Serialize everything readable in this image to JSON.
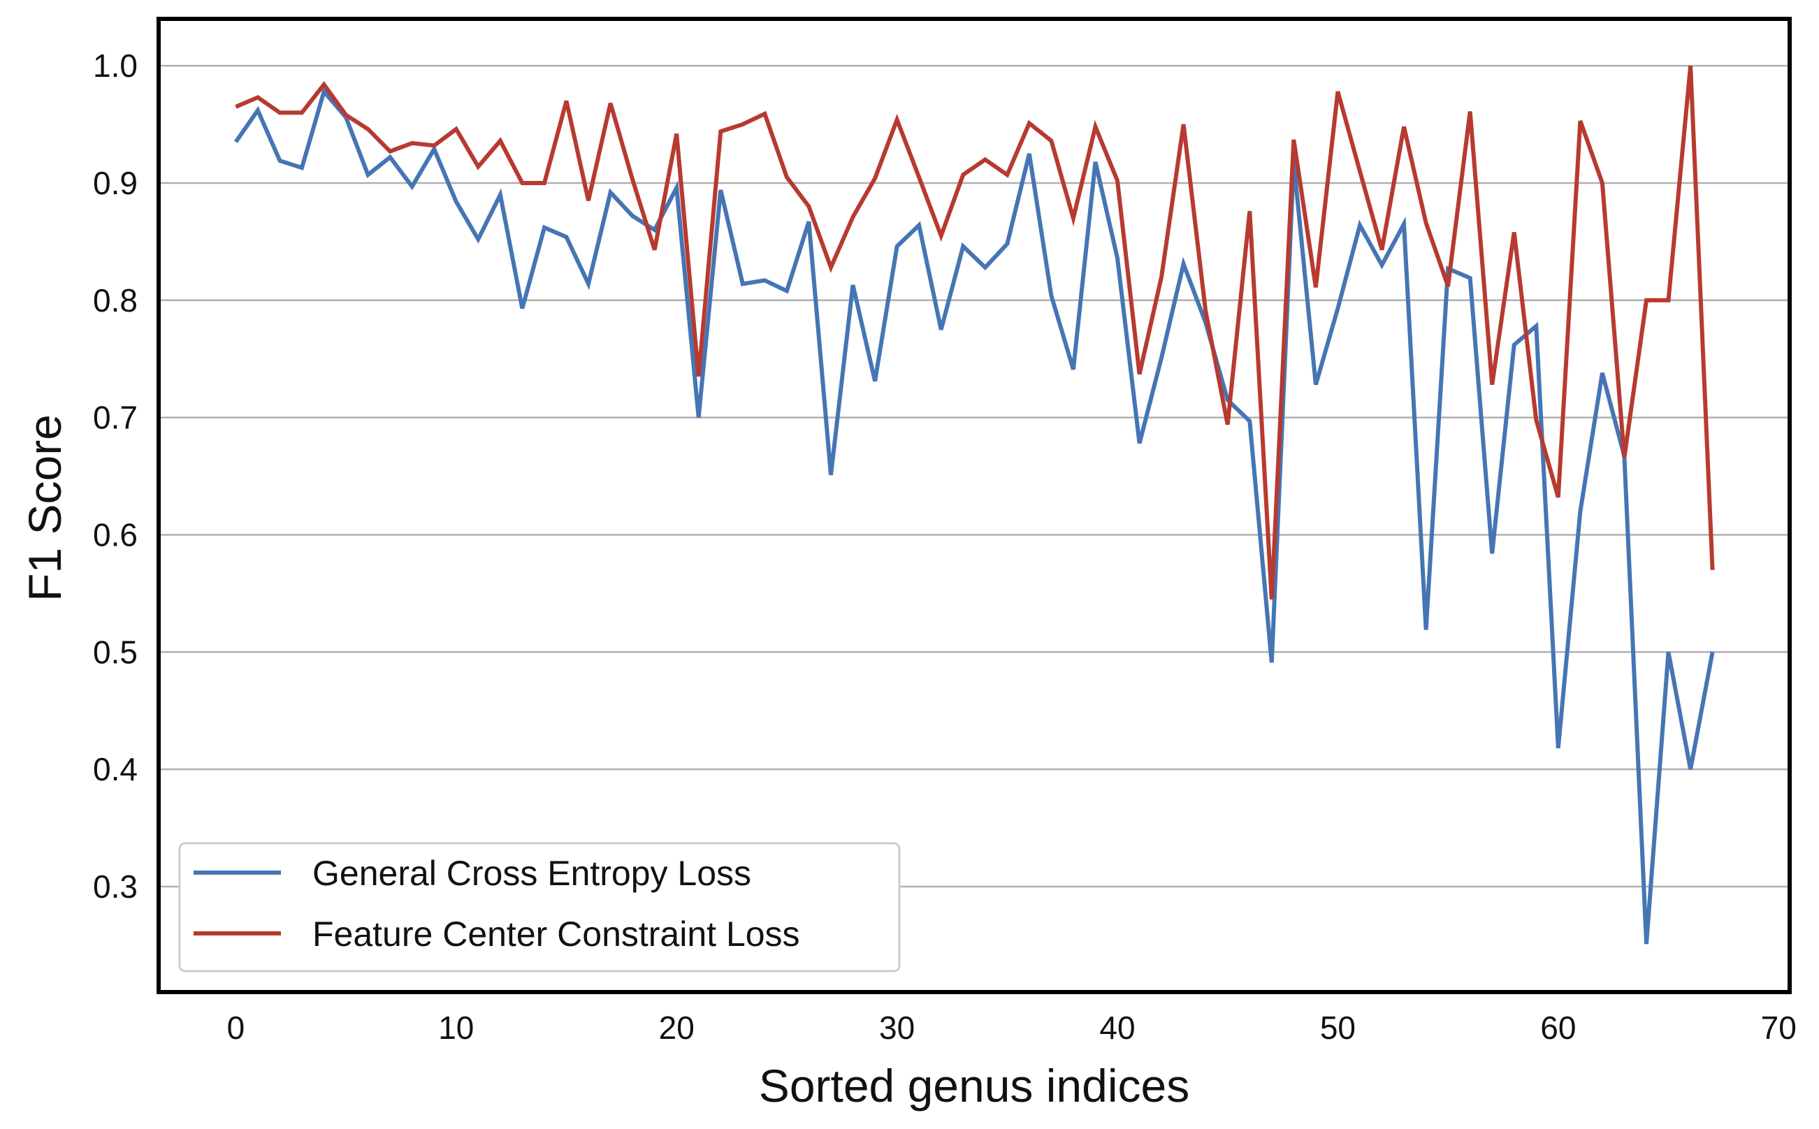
{
  "chart_data": {
    "type": "line",
    "title": "",
    "xlabel": "Sorted genus indices",
    "ylabel": "F1 Score",
    "xlim": [
      -3.5,
      70.5
    ],
    "ylim": [
      0.21,
      1.04
    ],
    "xticks": [
      0,
      10,
      20,
      30,
      40,
      50,
      60,
      70
    ],
    "yticks": [
      0.3,
      0.4,
      0.5,
      0.6,
      0.7,
      0.8,
      0.9,
      1.0
    ],
    "xtick_labels": [
      "0",
      "10",
      "20",
      "30",
      "40",
      "50",
      "60",
      "70"
    ],
    "ytick_labels": [
      "0.3",
      "0.4",
      "0.5",
      "0.6",
      "0.7",
      "0.8",
      "0.9",
      "1.0"
    ],
    "grid": "horizontal",
    "legend_position": "lower-left",
    "series": [
      {
        "name": "General Cross Entropy Loss",
        "color": "#4575b4",
        "values": [
          0.935,
          0.962,
          0.919,
          0.913,
          0.978,
          0.956,
          0.907,
          0.922,
          0.897,
          0.929,
          0.884,
          0.852,
          0.89,
          0.793,
          0.862,
          0.854,
          0.814,
          0.892,
          0.872,
          0.86,
          0.896,
          0.7,
          0.894,
          0.814,
          0.817,
          0.808,
          0.867,
          0.651,
          0.813,
          0.731,
          0.846,
          0.864,
          0.775,
          0.846,
          0.828,
          0.848,
          0.925,
          0.804,
          0.741,
          0.918,
          0.836,
          0.678,
          0.751,
          0.831,
          0.781,
          0.715,
          0.697,
          0.491,
          0.918,
          0.728,
          0.793,
          0.864,
          0.83,
          0.865,
          0.519,
          0.827,
          0.819,
          0.584,
          0.762,
          0.778,
          0.418,
          0.62,
          0.738,
          0.667,
          0.251,
          0.5,
          0.4,
          0.5
        ]
      },
      {
        "name": "Feature Center Constraint Loss",
        "color": "#b73a30",
        "values": [
          0.965,
          0.973,
          0.96,
          0.96,
          0.984,
          0.958,
          0.946,
          0.927,
          0.934,
          0.932,
          0.946,
          0.914,
          0.936,
          0.9,
          0.9,
          0.97,
          0.885,
          0.968,
          0.903,
          0.843,
          0.942,
          0.735,
          0.944,
          0.95,
          0.959,
          0.905,
          0.88,
          0.828,
          0.871,
          0.904,
          0.954,
          0.905,
          0.855,
          0.907,
          0.92,
          0.907,
          0.951,
          0.936,
          0.87,
          0.948,
          0.902,
          0.737,
          0.82,
          0.95,
          0.791,
          0.694,
          0.876,
          0.545,
          0.937,
          0.811,
          0.978,
          0.91,
          0.843,
          0.948,
          0.866,
          0.812,
          0.961,
          0.728,
          0.858,
          0.698,
          0.632,
          0.953,
          0.9,
          0.666,
          0.8,
          0.8,
          1.0,
          0.57
        ]
      }
    ]
  }
}
